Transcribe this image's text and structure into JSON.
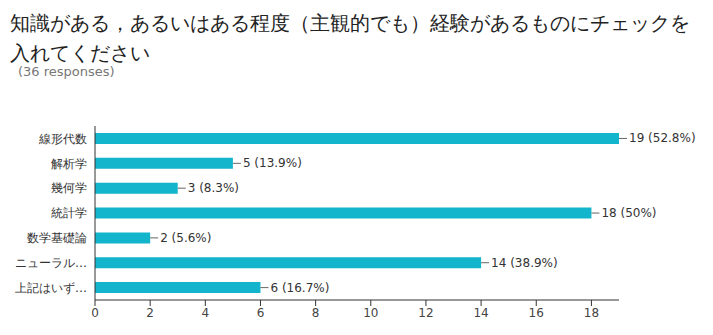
{
  "chart_data": {
    "type": "bar",
    "title": "知識がある，あるいはある程度（主観的でも）経験があるものにチェックを入れてください",
    "subtitle": "(36 responses)",
    "orientation": "horizontal",
    "categories": [
      "線形代数",
      "解析学",
      "幾何学",
      "統計学",
      "数学基礎論",
      "ニューラル…",
      "上記はいず…"
    ],
    "values": [
      19,
      5,
      3,
      18,
      2,
      14,
      6
    ],
    "value_labels": [
      "19 (52.8%)",
      "5 (13.9%)",
      "3 (8.3%)",
      "18 (50%)",
      "2 (5.6%)",
      "14 (38.9%)",
      "6 (16.7%)"
    ],
    "color": "#12b5cb",
    "xlim": [
      0,
      19
    ],
    "xticks": [
      0,
      2,
      4,
      6,
      8,
      10,
      12,
      14,
      16,
      18
    ],
    "grid": false,
    "data_labels": true
  }
}
